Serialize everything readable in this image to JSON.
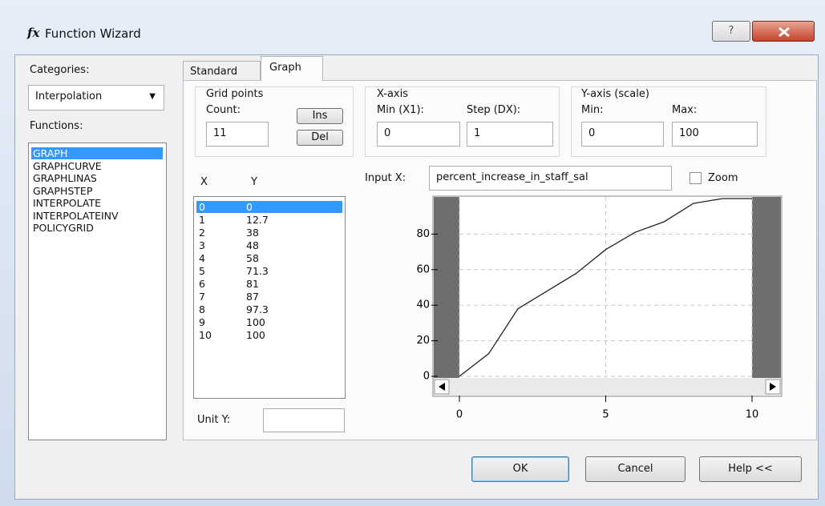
{
  "window": {
    "icon": "fx",
    "title": "Function Wizard",
    "help": "?"
  },
  "categories_label": "Categories:",
  "category": "Interpolation",
  "functions_label": "Functions:",
  "functions": [
    "GRAPH",
    "GRAPHCURVE",
    "GRAPHLINAS",
    "GRAPHSTEP",
    "INTERPOLATE",
    "INTERPOLATEINV",
    "POLICYGRID"
  ],
  "tabs": [
    "Standard",
    "Graph"
  ],
  "grid_points": {
    "title": "Grid points",
    "count_label": "Count:",
    "count": "11",
    "ins": "Ins",
    "del": "Del"
  },
  "x_axis": {
    "title": "X-axis",
    "min_label": "Min (X1):",
    "step_label": "Step (DX):",
    "min": "0",
    "step": "1"
  },
  "y_axis": {
    "title": "Y-axis (scale)",
    "min_label": "Min:",
    "max_label": "Max:",
    "min": "0",
    "max": "100"
  },
  "table": {
    "x_header": "X",
    "y_header": "Y",
    "rows": [
      [
        "0",
        "0"
      ],
      [
        "1",
        "12.7"
      ],
      [
        "2",
        "38"
      ],
      [
        "3",
        "48"
      ],
      [
        "4",
        "58"
      ],
      [
        "5",
        "71.3"
      ],
      [
        "6",
        "81"
      ],
      [
        "7",
        "87"
      ],
      [
        "8",
        "97.3"
      ],
      [
        "9",
        "100"
      ],
      [
        "10",
        "100"
      ]
    ]
  },
  "unit_label": "Unit Y:",
  "input_x": {
    "label": "Input X:",
    "value": "percent_increase_in_staff_sal"
  },
  "zoom": "Zoom",
  "chart_data": {
    "type": "line",
    "x": [
      0,
      1,
      2,
      3,
      4,
      5,
      6,
      7,
      8,
      9,
      10
    ],
    "values": [
      0,
      12.7,
      38,
      48,
      58,
      71.3,
      81,
      87,
      97.3,
      100,
      100
    ],
    "color": "#222222",
    "xlim": [
      0,
      10
    ],
    "ylim": [
      0,
      100
    ],
    "xticks": [
      0,
      5,
      10
    ],
    "yticks": [
      0,
      20,
      40,
      60,
      80
    ],
    "grid": true
  },
  "buttons": [
    "OK",
    "Cancel",
    "Help <<"
  ]
}
